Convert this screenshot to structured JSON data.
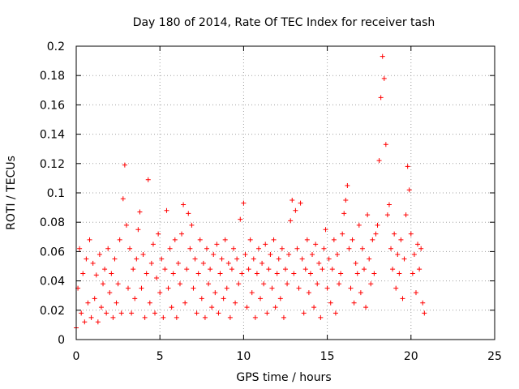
{
  "chart_data": {
    "type": "scatter",
    "title": "Day 180 of 2014, Rate Of TEC Index for receiver tash",
    "xlabel": "GPS time / hours",
    "ylabel": "ROTI / TECUs",
    "xlim": [
      0,
      25
    ],
    "ylim": [
      0,
      0.2
    ],
    "x_ticks": [
      0,
      5,
      10,
      15,
      20,
      25
    ],
    "x_tick_labels": [
      "0",
      "5",
      "10",
      "15",
      "20",
      "25"
    ],
    "y_ticks": [
      0,
      0.02,
      0.04,
      0.06,
      0.08,
      0.1,
      0.12,
      0.14,
      0.16,
      0.18,
      0.2
    ],
    "y_tick_labels": [
      "0",
      "0.02",
      "0.04",
      "0.06",
      "0.08",
      "0.1",
      "0.12",
      "0.14",
      "0.16",
      "0.18",
      "0.2"
    ],
    "grid": true,
    "legend": "none",
    "marker": "plus",
    "color": "#ff0000",
    "series": [
      {
        "x": [
          0.0,
          0.1,
          0.2,
          0.3,
          0.4,
          0.5,
          0.6,
          0.7,
          0.8,
          0.9,
          1.0,
          1.1,
          1.2,
          1.3,
          1.4,
          1.5,
          1.6,
          1.7,
          1.8,
          1.9,
          2.0,
          2.1,
          2.2,
          2.3,
          2.4,
          2.5,
          2.6,
          2.7,
          2.8,
          2.9,
          3.0,
          3.1,
          3.2,
          3.3,
          3.4,
          3.5,
          3.6,
          3.7,
          3.8,
          3.9,
          4.0,
          4.1,
          4.2,
          4.3,
          4.4,
          4.5,
          4.6,
          4.7,
          4.8,
          4.9,
          5.0,
          5.1,
          5.2,
          5.3,
          5.4,
          5.5,
          5.6,
          5.7,
          5.8,
          5.9,
          6.0,
          6.1,
          6.2,
          6.3,
          6.4,
          6.5,
          6.6,
          6.7,
          6.8,
          6.9,
          7.0,
          7.1,
          7.2,
          7.3,
          7.4,
          7.5,
          7.6,
          7.7,
          7.8,
          7.9,
          8.0,
          8.1,
          8.2,
          8.3,
          8.4,
          8.5,
          8.6,
          8.7,
          8.8,
          8.9,
          9.0,
          9.1,
          9.2,
          9.3,
          9.4,
          9.5,
          9.6,
          9.7,
          9.8,
          9.9,
          10.0,
          10.1,
          10.2,
          10.3,
          10.4,
          10.5,
          10.6,
          10.7,
          10.8,
          10.9,
          11.0,
          11.1,
          11.2,
          11.3,
          11.4,
          11.5,
          11.6,
          11.7,
          11.8,
          11.9,
          12.0,
          12.1,
          12.2,
          12.3,
          12.4,
          12.5,
          12.6,
          12.7,
          12.8,
          12.9,
          13.0,
          13.1,
          13.2,
          13.3,
          13.4,
          13.5,
          13.6,
          13.7,
          13.8,
          13.9,
          14.0,
          14.1,
          14.2,
          14.3,
          14.4,
          14.5,
          14.6,
          14.7,
          14.8,
          14.9,
          15.0,
          15.1,
          15.2,
          15.3,
          15.4,
          15.5,
          15.6,
          15.7,
          15.8,
          15.9,
          16.0,
          16.1,
          16.2,
          16.3,
          16.4,
          16.5,
          16.6,
          16.7,
          16.8,
          16.9,
          17.0,
          17.1,
          17.2,
          17.3,
          17.4,
          17.5,
          17.6,
          17.7,
          17.8,
          17.9,
          18.0,
          18.1,
          18.2,
          18.3,
          18.4,
          18.5,
          18.6,
          18.7,
          18.8,
          18.9,
          19.0,
          19.1,
          19.2,
          19.3,
          19.4,
          19.5,
          19.6,
          19.7,
          19.8,
          19.9,
          20.0,
          20.1,
          20.2,
          20.3,
          20.4,
          20.5,
          20.6,
          20.7,
          20.8
        ],
        "y": [
          0.008,
          0.035,
          0.062,
          0.018,
          0.045,
          0.012,
          0.055,
          0.025,
          0.068,
          0.015,
          0.052,
          0.028,
          0.044,
          0.012,
          0.058,
          0.022,
          0.038,
          0.048,
          0.018,
          0.062,
          0.032,
          0.045,
          0.015,
          0.055,
          0.025,
          0.038,
          0.068,
          0.018,
          0.096,
          0.119,
          0.078,
          0.035,
          0.062,
          0.018,
          0.048,
          0.028,
          0.055,
          0.075,
          0.087,
          0.035,
          0.058,
          0.015,
          0.045,
          0.109,
          0.025,
          0.052,
          0.065,
          0.018,
          0.042,
          0.072,
          0.032,
          0.055,
          0.015,
          0.048,
          0.088,
          0.035,
          0.062,
          0.022,
          0.045,
          0.068,
          0.015,
          0.052,
          0.038,
          0.072,
          0.092,
          0.025,
          0.048,
          0.086,
          0.062,
          0.078,
          0.035,
          0.055,
          0.018,
          0.045,
          0.068,
          0.028,
          0.052,
          0.015,
          0.062,
          0.038,
          0.048,
          0.022,
          0.058,
          0.032,
          0.065,
          0.018,
          0.045,
          0.055,
          0.028,
          0.068,
          0.035,
          0.052,
          0.015,
          0.048,
          0.062,
          0.025,
          0.055,
          0.038,
          0.082,
          0.045,
          0.093,
          0.058,
          0.022,
          0.048,
          0.068,
          0.032,
          0.055,
          0.015,
          0.045,
          0.062,
          0.028,
          0.052,
          0.038,
          0.065,
          0.018,
          0.048,
          0.058,
          0.035,
          0.068,
          0.022,
          0.045,
          0.055,
          0.028,
          0.062,
          0.015,
          0.048,
          0.038,
          0.058,
          0.081,
          0.095,
          0.045,
          0.088,
          0.062,
          0.035,
          0.093,
          0.055,
          0.018,
          0.048,
          0.068,
          0.032,
          0.045,
          0.058,
          0.022,
          0.065,
          0.038,
          0.052,
          0.015,
          0.048,
          0.062,
          0.075,
          0.035,
          0.055,
          0.025,
          0.048,
          0.068,
          0.018,
          0.058,
          0.038,
          0.045,
          0.072,
          0.086,
          0.095,
          0.105,
          0.062,
          0.035,
          0.068,
          0.025,
          0.052,
          0.045,
          0.078,
          0.032,
          0.062,
          0.048,
          0.022,
          0.085,
          0.055,
          0.038,
          0.068,
          0.045,
          0.072,
          0.078,
          0.122,
          0.165,
          0.193,
          0.178,
          0.133,
          0.085,
          0.092,
          0.062,
          0.048,
          0.072,
          0.035,
          0.058,
          0.045,
          0.068,
          0.028,
          0.055,
          0.085,
          0.118,
          0.102,
          0.072,
          0.045,
          0.058,
          0.032,
          0.065,
          0.048,
          0.062,
          0.025,
          0.018
        ]
      }
    ]
  }
}
